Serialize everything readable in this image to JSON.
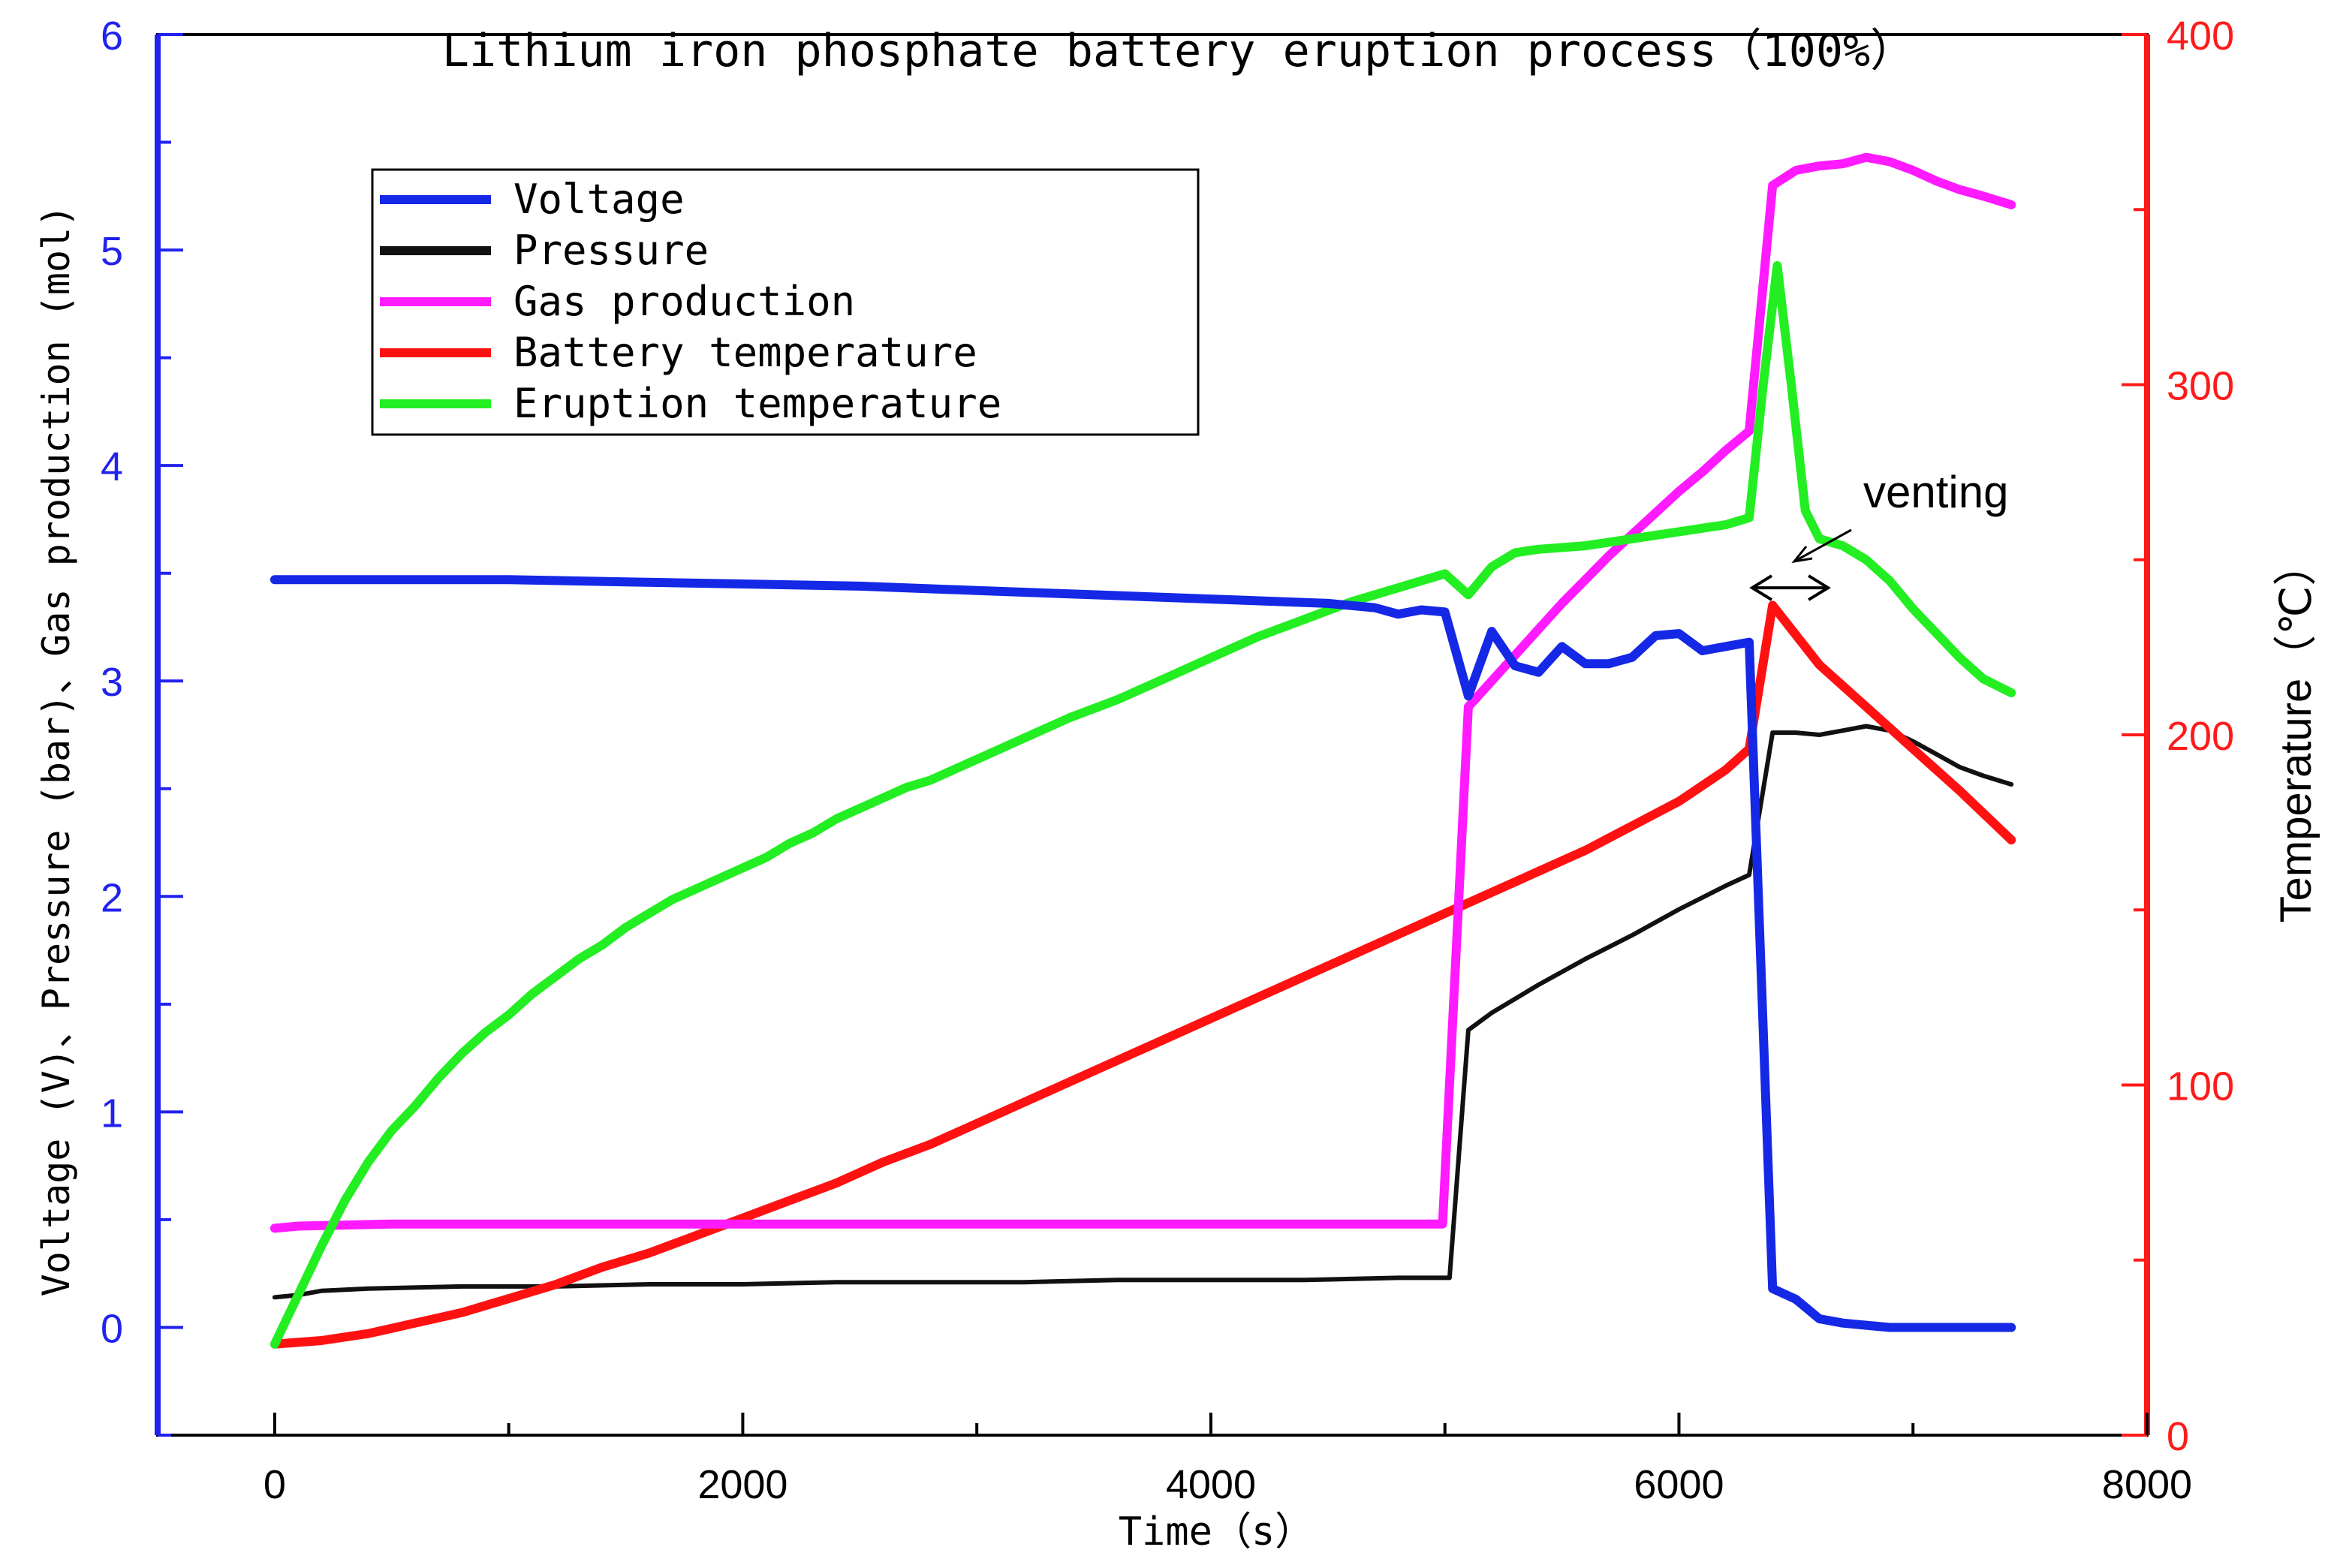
{
  "chart_data": {
    "type": "line",
    "title": "Lithium iron phosphate battery eruption process（100%）",
    "xlabel": "Time（s）",
    "ylabel_left": "Voltage (V)、Pressure (bar)、Gas production (mol)",
    "ylabel_right": "Temperature（℃）",
    "xlim": [
      -500,
      8000
    ],
    "ylim_left": [
      -0.5,
      6
    ],
    "ylim_right": [
      0,
      400
    ],
    "x_ticks": [
      0,
      2000,
      4000,
      6000,
      8000
    ],
    "x_tick_labels": [
      "0",
      "2000",
      "4000",
      "6000",
      "8000"
    ],
    "y_left_ticks": [
      0,
      1,
      2,
      3,
      4,
      5,
      6
    ],
    "y_left_tick_labels": [
      "0",
      "1",
      "2",
      "3",
      "4",
      "5",
      "6"
    ],
    "y_right_ticks": [
      0,
      100,
      200,
      300,
      400
    ],
    "y_right_tick_labels": [
      "0",
      "100",
      "200",
      "300",
      "400"
    ],
    "legend_position": "top-left",
    "colors": {
      "left_axis": "#2222ee",
      "right_axis": "#ff1a1a",
      "frame": "#000000"
    },
    "series": [
      {
        "name": "Voltage",
        "axis": "left",
        "color": "#1428e6",
        "x": [
          0,
          500,
          1000,
          1500,
          2000,
          2500,
          3000,
          3500,
          4000,
          4500,
          4700,
          4800,
          4900,
          5000,
          5100,
          5200,
          5300,
          5400,
          5500,
          5600,
          5700,
          5800,
          5900,
          6000,
          6100,
          6200,
          6300,
          6400,
          6500,
          6600,
          6700,
          6800,
          6900,
          7000,
          7100,
          7200,
          7300,
          7420
        ],
        "y": [
          3.47,
          3.47,
          3.47,
          3.46,
          3.45,
          3.44,
          3.42,
          3.4,
          3.38,
          3.36,
          3.34,
          3.31,
          3.33,
          3.32,
          2.93,
          3.23,
          3.07,
          3.04,
          3.16,
          3.08,
          3.08,
          3.11,
          3.21,
          3.22,
          3.14,
          3.16,
          3.18,
          0.18,
          0.13,
          0.04,
          0.02,
          0.01,
          0.0,
          0.0,
          0.0,
          0.0,
          0.0,
          0.0
        ]
      },
      {
        "name": "Pressure",
        "axis": "left",
        "color": "#111111",
        "x": [
          0,
          100,
          200,
          400,
          800,
          1200,
          1600,
          2000,
          2400,
          2800,
          3200,
          3600,
          4000,
          4400,
          4800,
          4990,
          5020,
          5100,
          5200,
          5400,
          5600,
          5800,
          6000,
          6200,
          6300,
          6400,
          6500,
          6600,
          6700,
          6800,
          6900,
          7000,
          7100,
          7200,
          7300,
          7420
        ],
        "y": [
          0.14,
          0.15,
          0.17,
          0.18,
          0.19,
          0.19,
          0.2,
          0.2,
          0.21,
          0.21,
          0.21,
          0.22,
          0.22,
          0.22,
          0.23,
          0.23,
          0.23,
          1.38,
          1.46,
          1.59,
          1.71,
          1.82,
          1.94,
          2.05,
          2.1,
          2.76,
          2.76,
          2.75,
          2.77,
          2.79,
          2.77,
          2.72,
          2.66,
          2.6,
          2.56,
          2.52
        ]
      },
      {
        "name": "Gas production",
        "axis": "left",
        "color": "#ff1aff",
        "x": [
          0,
          100,
          500,
          1000,
          2000,
          3000,
          4000,
          4990,
          5100,
          5200,
          5300,
          5400,
          5500,
          5600,
          5700,
          5800,
          5900,
          6000,
          6100,
          6200,
          6300,
          6400,
          6500,
          6600,
          6700,
          6800,
          6900,
          7000,
          7100,
          7200,
          7300,
          7420
        ],
        "y": [
          0.46,
          0.47,
          0.48,
          0.48,
          0.48,
          0.48,
          0.48,
          0.48,
          2.88,
          3.0,
          3.12,
          3.24,
          3.36,
          3.47,
          3.58,
          3.68,
          3.78,
          3.88,
          3.97,
          4.07,
          4.16,
          5.3,
          5.37,
          5.39,
          5.4,
          5.43,
          5.41,
          5.37,
          5.32,
          5.28,
          5.25,
          5.21
        ]
      },
      {
        "name": "Battery temperature",
        "axis": "right",
        "color": "#ff1111",
        "x": [
          0,
          200,
          400,
          600,
          800,
          1000,
          1200,
          1400,
          1600,
          1800,
          2000,
          2200,
          2400,
          2600,
          2800,
          3000,
          3200,
          3400,
          3600,
          3800,
          4000,
          4200,
          4400,
          4600,
          4800,
          5000,
          5200,
          5400,
          5600,
          5800,
          6000,
          6200,
          6300,
          6400,
          6600,
          6800,
          7000,
          7200,
          7420
        ],
        "y": [
          26,
          27,
          29,
          32,
          35,
          39,
          43,
          48,
          52,
          57,
          62,
          67,
          72,
          78,
          83,
          89,
          95,
          101,
          107,
          113,
          119,
          125,
          131,
          137,
          143,
          149,
          155,
          161,
          167,
          174,
          181,
          190,
          196,
          237,
          220,
          208,
          196,
          184,
          170
        ]
      },
      {
        "name": "Eruption temperature",
        "axis": "right",
        "color": "#22ee22",
        "x": [
          0,
          100,
          200,
          300,
          400,
          500,
          600,
          700,
          800,
          900,
          1000,
          1100,
          1200,
          1300,
          1400,
          1500,
          1600,
          1700,
          1800,
          1900,
          2000,
          2100,
          2200,
          2300,
          2400,
          2500,
          2600,
          2700,
          2800,
          2900,
          3000,
          3200,
          3400,
          3600,
          3800,
          4000,
          4200,
          4400,
          4600,
          4800,
          5000,
          5100,
          5200,
          5300,
          5400,
          5600,
          5800,
          6000,
          6200,
          6300,
          6360,
          6420,
          6480,
          6540,
          6600,
          6700,
          6800,
          6900,
          7000,
          7100,
          7200,
          7300,
          7420
        ],
        "y": [
          26,
          40,
          54,
          67,
          78,
          87,
          94,
          102,
          109,
          115,
          120,
          126,
          131,
          136,
          140,
          145,
          149,
          153,
          156,
          159,
          162,
          165,
          169,
          172,
          176,
          179,
          182,
          185,
          187,
          190,
          193,
          199,
          205,
          210,
          216,
          222,
          228,
          233,
          238,
          242,
          246,
          240,
          248,
          252,
          253,
          254,
          256,
          258,
          260,
          262,
          300,
          334,
          300,
          264,
          256,
          254,
          250,
          244,
          236,
          229,
          222,
          216,
          212
        ]
      }
    ],
    "annotation": {
      "text": "venting",
      "x_start": 6300,
      "x_end": 6650,
      "y_temp": 242
    }
  }
}
